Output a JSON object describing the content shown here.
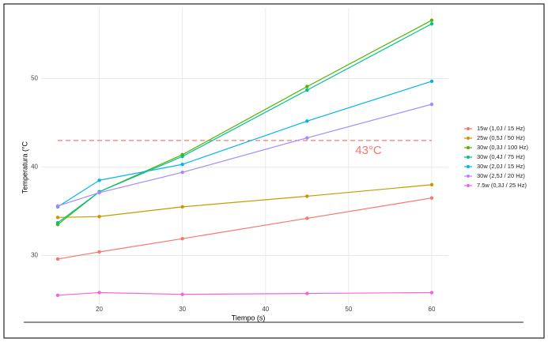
{
  "chart_data": {
    "type": "line",
    "x_label": "Tiempo (s)",
    "y_label": "Temperatura (°C",
    "x": [
      15,
      20,
      30,
      45,
      60
    ],
    "series": [
      {
        "name": "15w (1,0J / 15 Hz)",
        "color": "#F8766D",
        "values": [
          29.6,
          30.4,
          31.9,
          34.2,
          36.5
        ]
      },
      {
        "name": "25w (0,5J / 50 Hz)",
        "color": "#C49A00",
        "values": [
          34.3,
          34.4,
          35.5,
          36.7,
          38.0
        ]
      },
      {
        "name": "30w (0,3J / 100 Hz)",
        "color": "#53B400",
        "values": [
          33.5,
          37.2,
          41.4,
          49.1,
          56.6
        ]
      },
      {
        "name": "30w (0,4J / 75 Hz)",
        "color": "#00C094",
        "values": [
          33.7,
          37.2,
          41.2,
          48.7,
          56.2
        ]
      },
      {
        "name": "30w (2,0J / 15 Hz)",
        "color": "#00B6EB",
        "values": [
          35.5,
          38.5,
          40.3,
          45.2,
          49.7
        ]
      },
      {
        "name": "30w (2,5J / 20 Hz)",
        "color": "#A58AFF",
        "values": [
          35.6,
          37.1,
          39.4,
          43.3,
          47.1
        ]
      },
      {
        "name": "7.5w (0,3J / 25 Hz)",
        "color": "#FB61D7",
        "values": [
          25.5,
          25.8,
          25.6,
          25.7,
          25.8
        ]
      }
    ],
    "reference_line": {
      "value": 43,
      "label": "43°C",
      "color": "#F8766D"
    },
    "xlim": [
      13,
      62
    ],
    "ylim": [
      24.5,
      58
    ],
    "xticks": [
      20,
      30,
      40,
      50,
      60
    ],
    "yticks": [
      30,
      40,
      50
    ],
    "grid": true
  }
}
